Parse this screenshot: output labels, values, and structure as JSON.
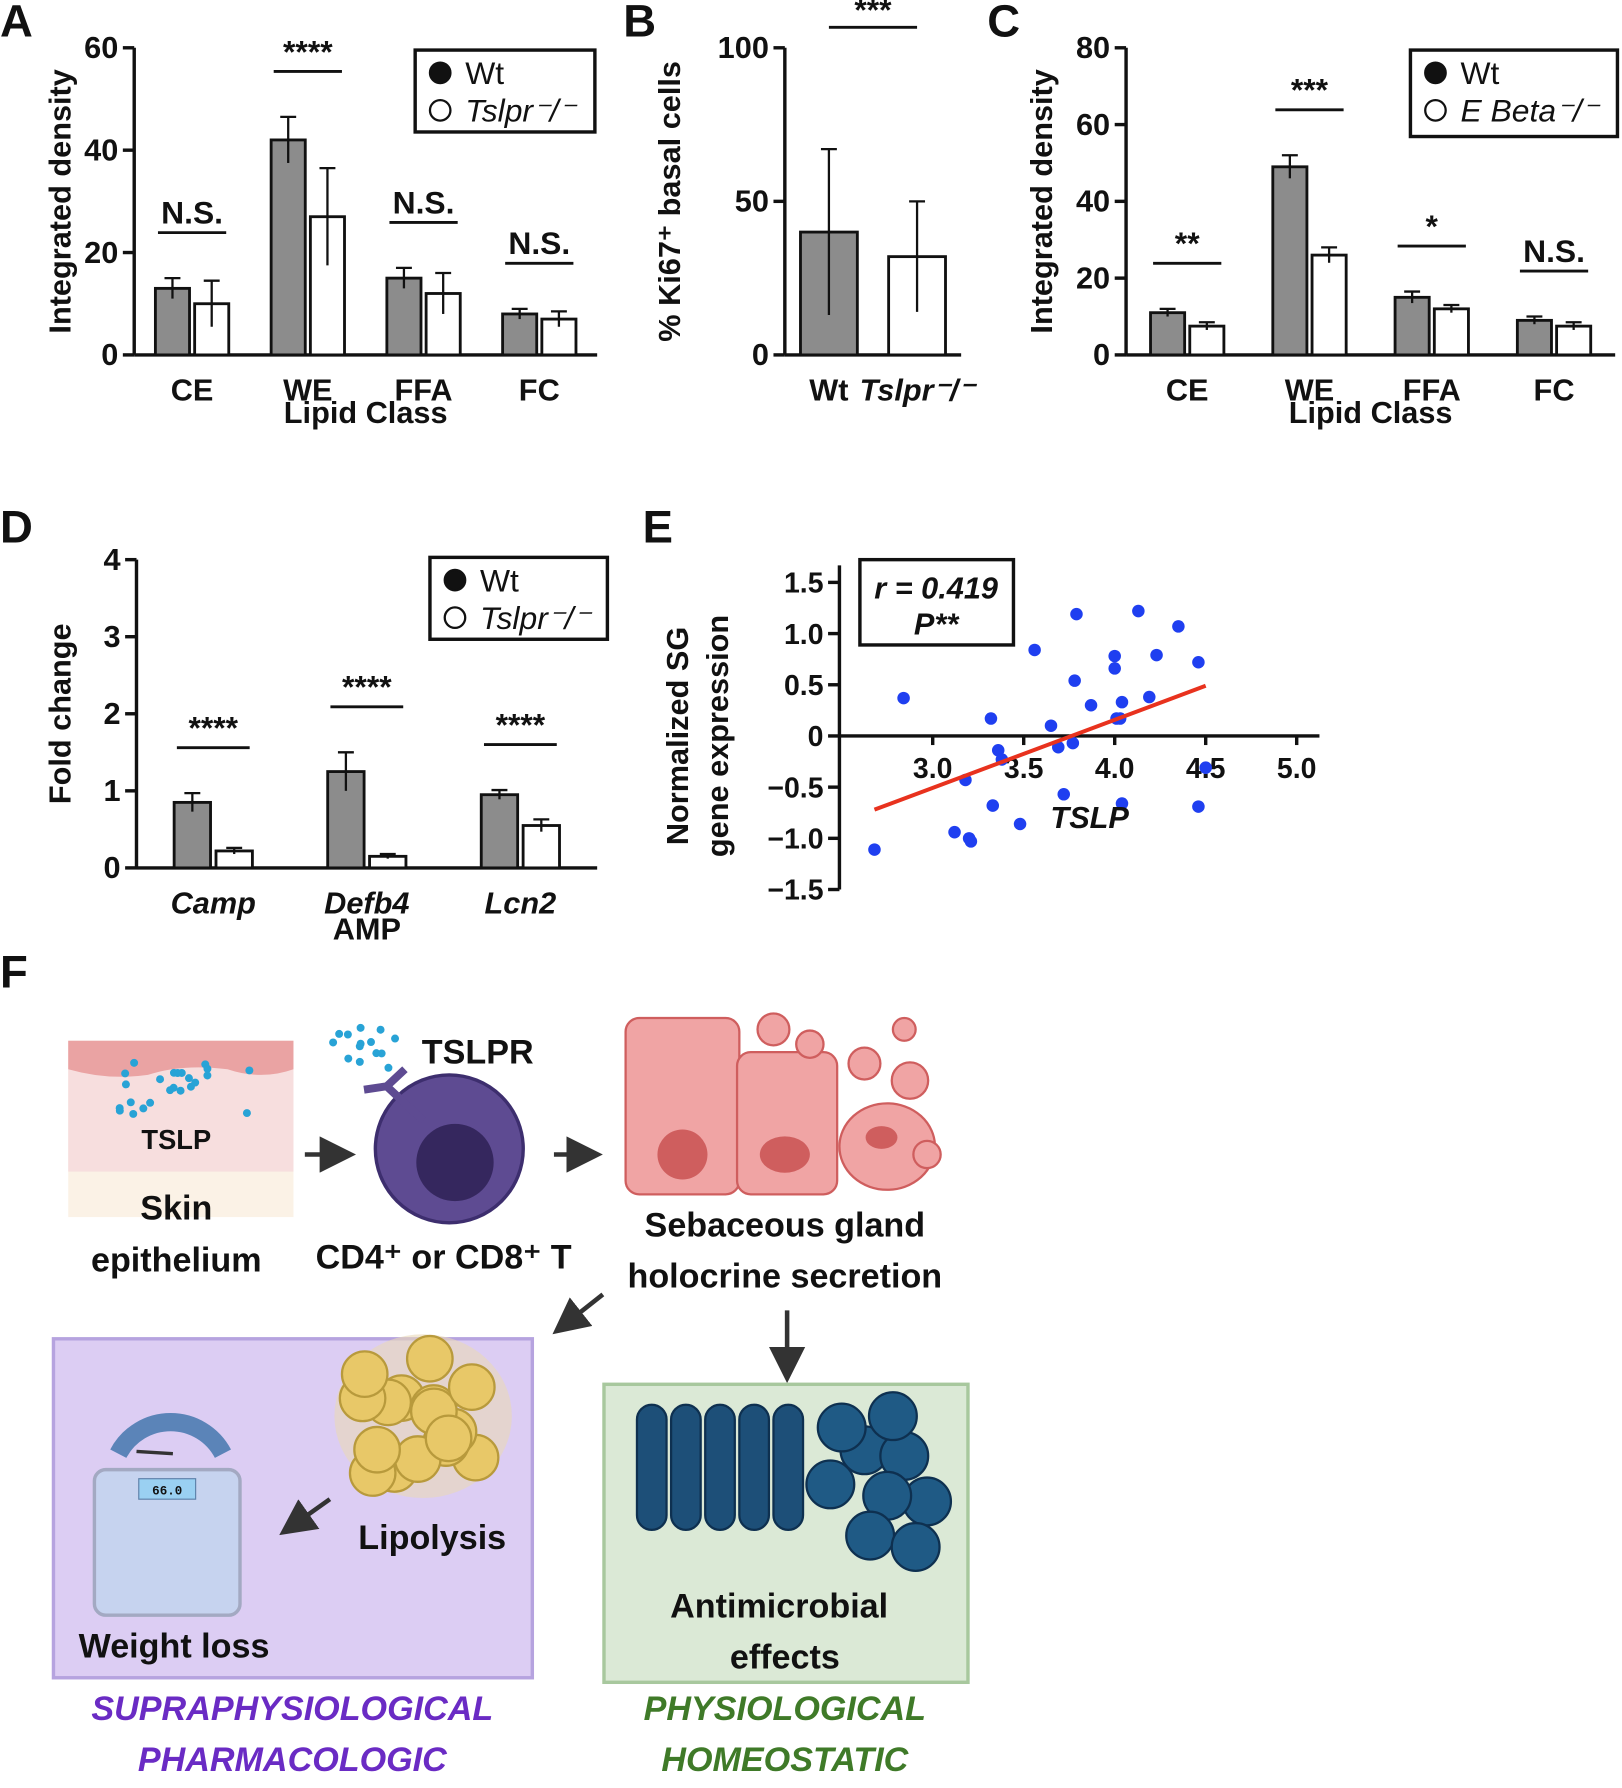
{
  "chart_data": [
    {
      "panel": "A",
      "type": "bar",
      "categories": [
        "CE",
        "WE",
        "FFA",
        "FC"
      ],
      "series": [
        {
          "name": "Wt",
          "color": "#8c8c8c",
          "marker": "filled",
          "values": [
            13,
            42,
            15,
            8
          ],
          "errors": [
            2,
            4.5,
            2,
            1
          ]
        },
        {
          "name": "Tslpr⁻/⁻",
          "color": "#ffffff",
          "marker": "open",
          "values": [
            10,
            27,
            12,
            7
          ],
          "errors": [
            4.5,
            9.5,
            4,
            1.5
          ]
        }
      ],
      "significance": [
        "N.S.",
        "****",
        "N.S.",
        "N.S."
      ],
      "ylim": [
        0,
        60
      ],
      "yticks": [
        0,
        20,
        40,
        60
      ],
      "xlabel": "Lipid Class",
      "ylabel": "Integrated density",
      "legend": "upper right"
    },
    {
      "panel": "B",
      "type": "bar",
      "categories": [
        "Wt",
        "Tslpr⁻/⁻"
      ],
      "values": [
        40,
        32
      ],
      "errors": [
        27,
        18
      ],
      "colors": [
        "#8c8c8c",
        "#ffffff"
      ],
      "annotation": "***",
      "ylim": [
        0,
        100
      ],
      "yticks": [
        0,
        50,
        100
      ],
      "ylabel": "% Ki67⁺ basal cells"
    },
    {
      "panel": "C",
      "type": "bar",
      "categories": [
        "CE",
        "WE",
        "FFA",
        "FC"
      ],
      "series": [
        {
          "name": "Wt",
          "color": "#8c8c8c",
          "marker": "filled",
          "values": [
            11,
            49,
            15,
            9
          ],
          "errors": [
            1,
            3,
            1.5,
            1
          ]
        },
        {
          "name": "E Beta⁻/⁻",
          "color": "#ffffff",
          "marker": "open",
          "values": [
            7.5,
            26,
            12,
            7.5
          ],
          "errors": [
            1,
            2,
            1,
            1
          ]
        }
      ],
      "significance": [
        "**",
        "***",
        "*",
        "N.S."
      ],
      "ylim": [
        0,
        80
      ],
      "yticks": [
        0,
        20,
        40,
        60,
        80
      ],
      "xlabel": "Lipid Class",
      "ylabel": "Integrated density",
      "legend": "upper right"
    },
    {
      "panel": "D",
      "type": "bar",
      "categories": [
        "Camp",
        "Defb4",
        "Lcn2"
      ],
      "series": [
        {
          "name": "Wt",
          "color": "#8c8c8c",
          "marker": "filled",
          "values": [
            0.85,
            1.25,
            0.95
          ],
          "errors": [
            0.12,
            0.25,
            0.06
          ]
        },
        {
          "name": "Tslpr⁻/⁻",
          "color": "#ffffff",
          "marker": "open",
          "values": [
            0.22,
            0.15,
            0.55
          ],
          "errors": [
            0.04,
            0.03,
            0.08
          ]
        }
      ],
      "significance": [
        "****",
        "****",
        "****"
      ],
      "ylim": [
        0,
        4
      ],
      "yticks": [
        0,
        1,
        2,
        3,
        4
      ],
      "xlabel": "AMP",
      "ylabel": "Fold change",
      "legend": "upper right"
    },
    {
      "panel": "E",
      "type": "scatter",
      "color": "#1f3ff0",
      "x": [
        2.68,
        2.84,
        3.12,
        3.18,
        3.2,
        3.21,
        3.32,
        3.36,
        3.38,
        3.33,
        3.48,
        3.56,
        3.65,
        3.69,
        3.72,
        3.77,
        3.78,
        3.79,
        3.87,
        4.0,
        4.0,
        4.01,
        4.03,
        4.04,
        4.13,
        4.19,
        4.23,
        4.35,
        4.46,
        4.46,
        4.5,
        4.04
      ],
      "y": [
        -1.11,
        0.37,
        -0.94,
        -0.43,
        -1.0,
        -1.03,
        0.17,
        -0.14,
        -0.23,
        -0.68,
        -0.86,
        0.84,
        0.1,
        -0.11,
        -0.57,
        -0.07,
        0.54,
        1.19,
        0.3,
        0.78,
        0.66,
        0.17,
        0.17,
        0.33,
        1.22,
        0.38,
        0.79,
        1.07,
        0.72,
        -0.69,
        -0.31,
        -0.66
      ],
      "trend": {
        "x": [
          2.68,
          4.5
        ],
        "y": [
          -0.72,
          0.49
        ],
        "color": "#e8321e"
      },
      "annotations": [
        "r = 0.419",
        "P**"
      ],
      "xlim": [
        2.5,
        5.0
      ],
      "ylim": [
        -1.5,
        1.5
      ],
      "xticks": [
        {
          "value": 3,
          "label": "3.0"
        },
        3.5,
        {
          "value": 4,
          "label": "4.0"
        },
        4.5,
        {
          "value": 5,
          "label": "5.0"
        }
      ],
      "yticks": [
        {
          "value": -1.5,
          "label": "−1.5"
        },
        {
          "value": -1,
          "label": "−1.0"
        },
        {
          "value": -0.5,
          "label": "−0.5"
        },
        0,
        0.5,
        {
          "value": 1,
          "label": "1.0"
        },
        1.5
      ],
      "xlabel": "TSLP",
      "ylabel": [
        "Normalized SG",
        "gene expression"
      ]
    }
  ],
  "diagram": {
    "panel": "F",
    "skin_label": "TSLP",
    "skin_caption": [
      "Skin",
      "epithelium"
    ],
    "receptor": "TSLPR",
    "cell_caption": "CD4⁺ or CD8⁺ T",
    "gland_caption": [
      "Sebaceous gland",
      "holocrine secretion"
    ],
    "lipolysis": "Lipolysis",
    "scale_display": "66.0",
    "weight_loss": "Weight loss",
    "antimicrobial": [
      "Antimicrobial",
      "effects"
    ],
    "left_context": [
      "SUPRAPHYSIOLOGICAL",
      "PHARMACOLOGIC"
    ],
    "right_context": [
      "PHYSIOLOGICAL",
      "HOMEOSTATIC"
    ]
  }
}
